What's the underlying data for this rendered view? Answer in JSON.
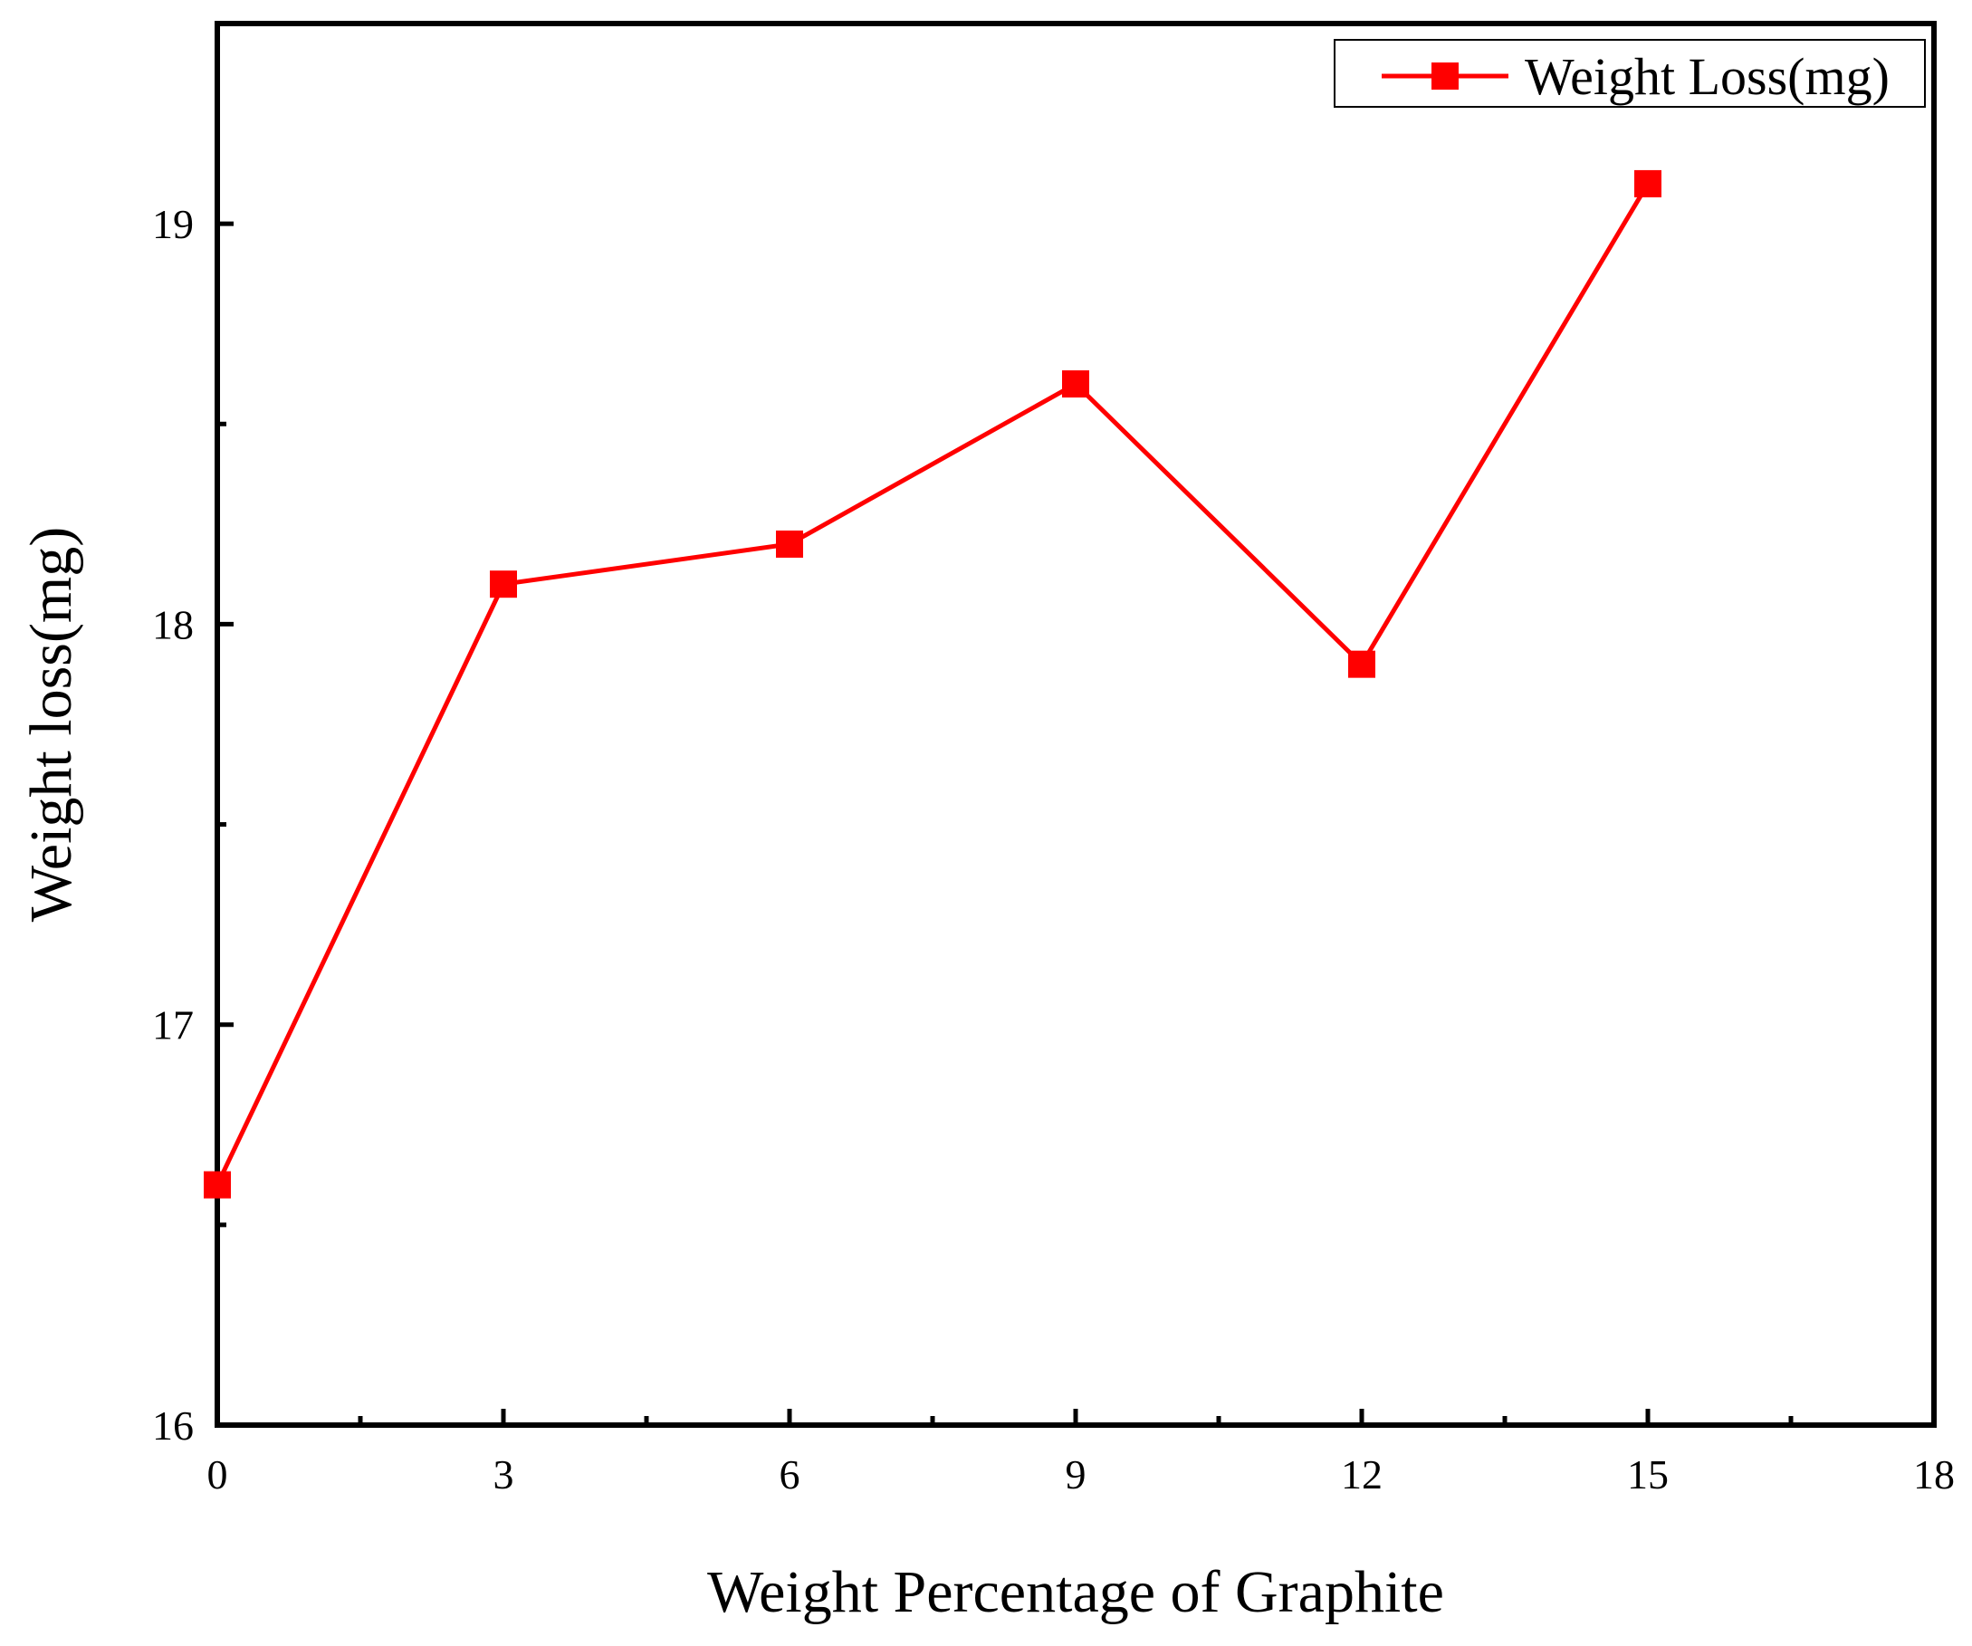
{
  "chart_data": {
    "type": "line",
    "title": "",
    "xlabel": "Weight Percentage of Graphite",
    "ylabel": "Weight loss(mg)",
    "xlim": [
      0,
      18
    ],
    "ylim": [
      16,
      19.5
    ],
    "x_ticks": [
      0,
      3,
      6,
      9,
      12,
      15,
      18
    ],
    "x_tick_labels": [
      "0",
      "3",
      "6",
      "9",
      "12",
      "15",
      "18"
    ],
    "y_ticks": [
      16,
      17,
      18,
      19
    ],
    "y_tick_labels": [
      "16",
      "17",
      "18",
      "19"
    ],
    "grid": false,
    "legend_position": "top-right",
    "series": [
      {
        "name": "Weight Loss(mg)",
        "color": "#ff0000",
        "marker": "square",
        "x": [
          0,
          3,
          6,
          9,
          12,
          15
        ],
        "y": [
          16.6,
          18.1,
          18.2,
          18.6,
          17.9,
          19.1
        ]
      }
    ]
  }
}
